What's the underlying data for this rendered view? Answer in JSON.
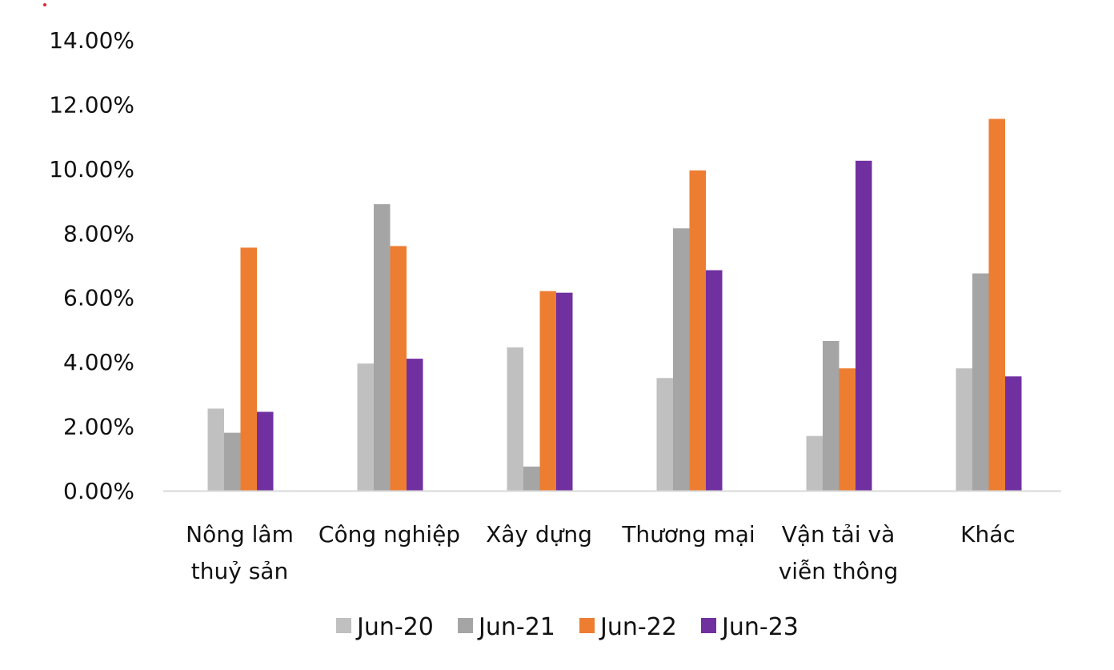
{
  "chart_data": {
    "type": "bar",
    "categories": [
      [
        "Nông lâm",
        "thuỷ sản"
      ],
      [
        "Công nghiệp"
      ],
      [
        "Xây dựng"
      ],
      [
        "Thương mại"
      ],
      [
        "Vận tải và",
        "viễn thông"
      ],
      [
        "Khác"
      ]
    ],
    "series": [
      {
        "name": "Jun-20",
        "color": "#c0c0c0",
        "values": [
          2.55,
          3.95,
          4.45,
          3.5,
          1.7,
          3.8
        ]
      },
      {
        "name": "Jun-21",
        "color": "#a5a5a5",
        "values": [
          1.8,
          8.9,
          0.75,
          8.15,
          4.65,
          6.75
        ]
      },
      {
        "name": "Jun-22",
        "color": "#ed7d31",
        "values": [
          7.55,
          7.6,
          6.2,
          9.95,
          3.8,
          11.55
        ]
      },
      {
        "name": "Jun-23",
        "color": "#7030a0",
        "values": [
          2.45,
          4.1,
          6.15,
          6.85,
          10.25,
          3.55
        ]
      }
    ],
    "y_ticks": [
      "0.00%",
      "2.00%",
      "4.00%",
      "6.00%",
      "8.00%",
      "10.00%",
      "12.00%",
      "14.00%"
    ],
    "ylim": [
      0,
      14
    ],
    "grid": false,
    "legend_position": "bottom",
    "axis_color": "#d9d9d9"
  }
}
